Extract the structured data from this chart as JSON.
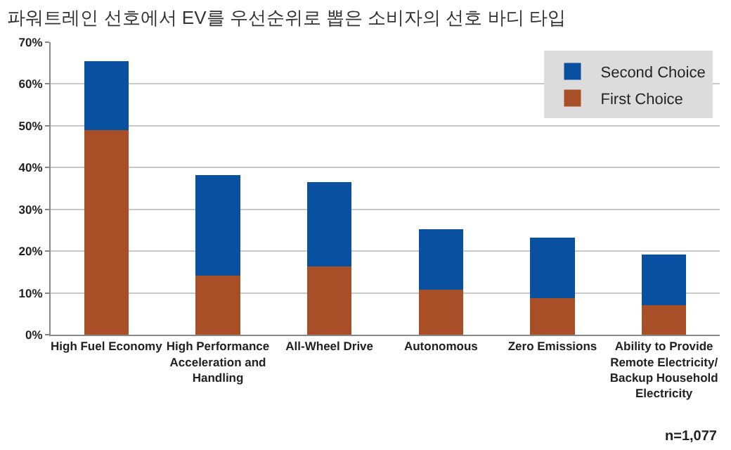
{
  "chart_data": {
    "type": "bar",
    "title": "파워트레인 선호에서 EV를 우선순위로 뽑은 소비자의 선호 바디 타입",
    "categories": [
      "High Fuel Economy",
      "High Performance Acceleration and Handling",
      "All-Wheel Drive",
      "Autonomous",
      "Zero Emissions",
      "Ability to Provide Remote Electricity/ Backup Household Electricity"
    ],
    "stacked": true,
    "series": [
      {
        "name": "First Choice",
        "color": "#a84f27",
        "values": [
          49.0,
          14.1,
          16.3,
          10.8,
          8.7,
          7.0
        ]
      },
      {
        "name": "Second Choice",
        "color": "#0a50a0",
        "values": [
          16.5,
          24.1,
          20.2,
          14.5,
          14.6,
          12.2
        ]
      }
    ],
    "ylim": [
      0,
      70
    ],
    "yticks": [
      {
        "value": 0,
        "label": "0%"
      },
      {
        "value": 10,
        "label": "10%"
      },
      {
        "value": 20,
        "label": "20%"
      },
      {
        "value": 30,
        "label": "30%"
      },
      {
        "value": 40,
        "label": "40%"
      },
      {
        "value": 50,
        "label": "50%"
      },
      {
        "value": 60,
        "label": "60%"
      },
      {
        "value": 70,
        "label": "70%"
      }
    ],
    "grid": "y",
    "legend": "top right",
    "annotations": [
      "n=1,077"
    ]
  }
}
